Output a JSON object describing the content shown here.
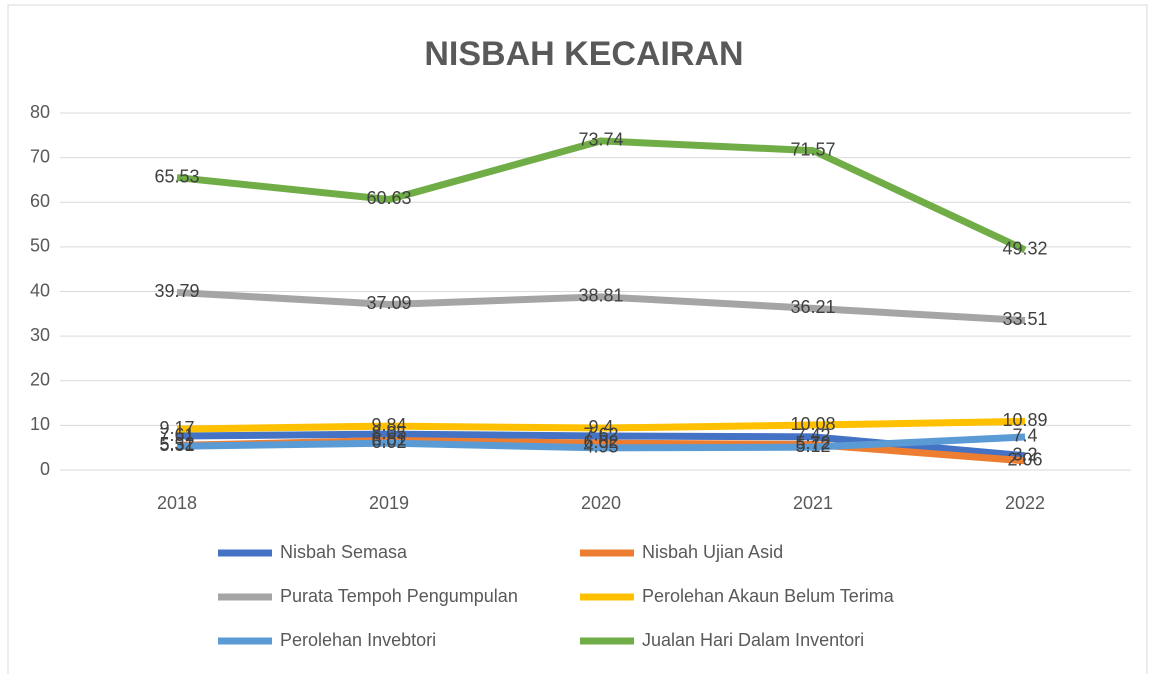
{
  "chart_data": {
    "type": "line",
    "title": "NISBAH KECAIRAN",
    "categories": [
      "2018",
      "2019",
      "2020",
      "2021",
      "2022"
    ],
    "series": [
      {
        "name": "Nisbah Semasa",
        "color": "#4472c4",
        "values": [
          7.61,
          8.05,
          7.62,
          7.42,
          3.2
        ]
      },
      {
        "name": "Nisbah Ujian Asid",
        "color": "#ed7d31",
        "values": [
          5.52,
          6.61,
          6.02,
          5.72,
          2.06
        ]
      },
      {
        "name": "Purata Tempoh Pengumpulan",
        "color": "#a5a5a5",
        "values": [
          39.79,
          37.09,
          38.81,
          36.21,
          33.51
        ]
      },
      {
        "name": "Perolehan Akaun Belum Terima",
        "color": "#ffc000",
        "values": [
          9.17,
          9.84,
          9.4,
          10.08,
          10.89
        ]
      },
      {
        "name": "Perolehan Invebtori",
        "color": "#5b9bd5",
        "values": [
          5.31,
          6.02,
          4.95,
          5.12,
          7.4
        ]
      },
      {
        "name": "Jualan Hari Dalam Inventori",
        "color": "#70ad47",
        "values": [
          65.53,
          60.63,
          73.74,
          71.57,
          49.32
        ]
      }
    ],
    "ylim": [
      0,
      80
    ],
    "yticks": [
      0,
      10,
      20,
      30,
      40,
      50,
      60,
      70,
      80
    ],
    "grid": true,
    "legend": "bottom"
  }
}
